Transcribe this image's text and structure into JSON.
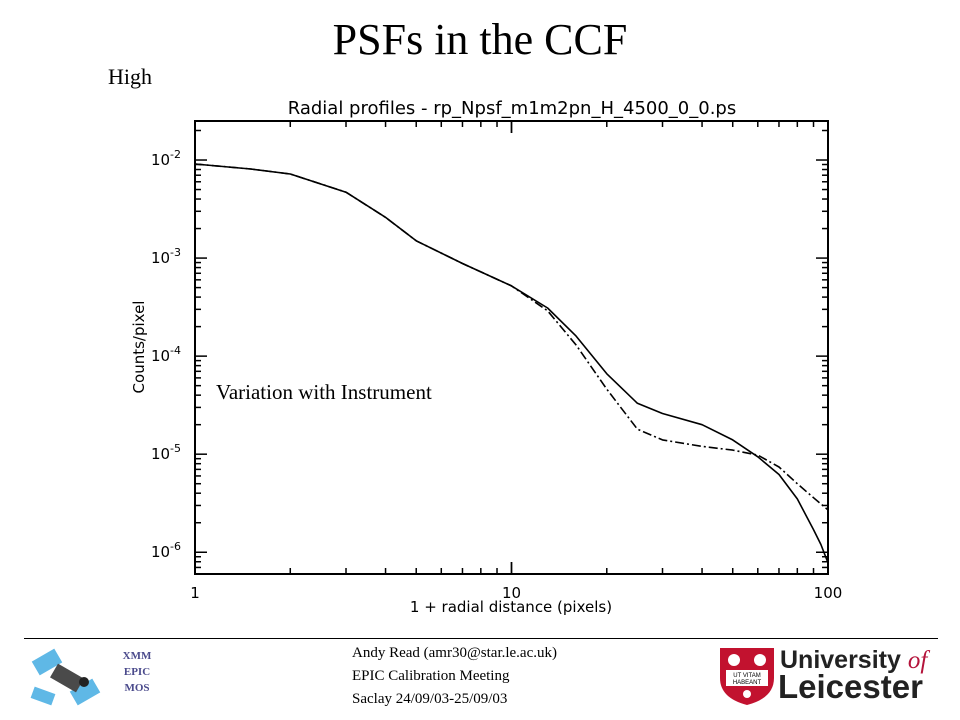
{
  "slide": {
    "title": "PSFs in the CCF",
    "energy_label": "High",
    "annotation": "Variation with Instrument"
  },
  "chart_data": {
    "type": "line",
    "title": "Radial profiles - rp_Npsf_m1m2pn_H_4500_0_0.ps",
    "xlabel": "1 + radial distance (pixels)",
    "ylabel": "Counts/pixel",
    "xscale": "log",
    "yscale": "log",
    "xlim": [
      1,
      100
    ],
    "ylim": [
      6e-07,
      0.025
    ],
    "x_ticks": [
      {
        "value": 1,
        "label": "1"
      },
      {
        "value": 10,
        "label": "10"
      },
      {
        "value": 100,
        "label": "100"
      }
    ],
    "y_ticks": [
      {
        "value": 0.01,
        "mant": "10",
        "exp": "-2"
      },
      {
        "value": 0.001,
        "mant": "10",
        "exp": "-3"
      },
      {
        "value": 0.0001,
        "mant": "10",
        "exp": "-4"
      },
      {
        "value": 1e-05,
        "mant": "10",
        "exp": "-5"
      },
      {
        "value": 1e-06,
        "mant": "10",
        "exp": "-6"
      }
    ],
    "series": [
      {
        "style": "solid",
        "x": [
          1,
          1.5,
          2,
          3,
          4,
          5,
          7,
          10,
          13,
          16,
          20,
          25,
          30,
          40,
          50,
          60,
          70,
          80,
          90,
          95,
          100
        ],
        "y": [
          0.0091,
          0.0081,
          0.0072,
          0.0047,
          0.0026,
          0.0015,
          0.00088,
          0.00052,
          0.00031,
          0.00016,
          6.6e-05,
          3.3e-05,
          2.6e-05,
          2e-05,
          1.4e-05,
          9.4e-06,
          6.2e-06,
          3.5e-06,
          1.7e-06,
          1.2e-06,
          7.8e-07
        ]
      },
      {
        "style": "dash-dot",
        "x": [
          1,
          1.5,
          2,
          3,
          4,
          5,
          7,
          10,
          13,
          16,
          20,
          25,
          30,
          40,
          50,
          60,
          70,
          80,
          90,
          100
        ],
        "y": [
          0.0091,
          0.0081,
          0.0072,
          0.0047,
          0.0026,
          0.0015,
          0.00088,
          0.00052,
          0.00029,
          0.00013,
          4.6e-05,
          1.8e-05,
          1.4e-05,
          1.2e-05,
          1.1e-05,
          9.8e-06,
          7.4e-06,
          5e-06,
          3.6e-06,
          2.7e-06
        ]
      }
    ],
    "grid": false,
    "legend": "none"
  },
  "footer": {
    "org_lines": [
      "XMM",
      "EPIC",
      "MOS"
    ],
    "author": "Andy Read (amr30@star.le.ac.uk)",
    "meeting": "EPIC Calibration Meeting",
    "place_dates": "Saclay 24/09/03-25/09/03",
    "university_line1": "University",
    "university_of": "of",
    "university_line2": "Leicester",
    "crest_motto_1": "UT VITAM",
    "crest_motto_2": "HABEANT",
    "colors": {
      "org_text": "#4b4b8c",
      "university_accent": "#b4133b",
      "crest_red": "#c2122f"
    }
  }
}
